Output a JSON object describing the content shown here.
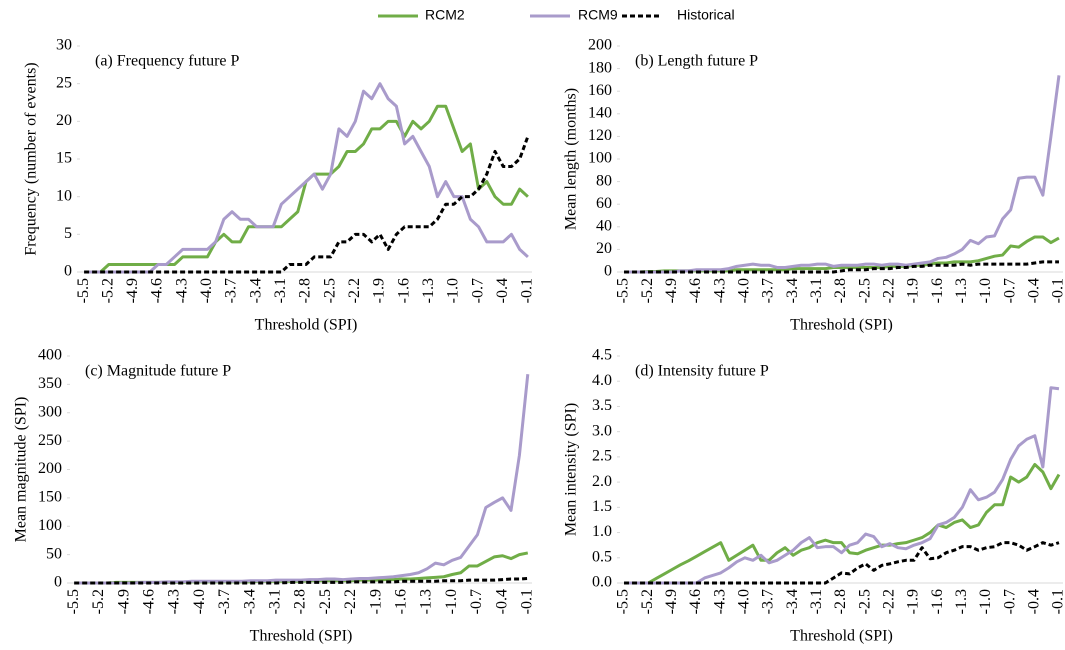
{
  "chart_data": [
    {
      "type": "line",
      "title": "(a) Frequency future P",
      "y_label": "Frequency (number of events)",
      "x_label": "Threshold (SPI)",
      "categories": [
        "-5.5",
        null,
        null,
        "-5.2",
        null,
        null,
        "-4.9",
        null,
        null,
        "-4.6",
        null,
        null,
        "-4.3",
        null,
        null,
        "-4.0",
        null,
        null,
        "-3.7",
        null,
        null,
        "-3.4",
        null,
        null,
        "-3.1",
        null,
        null,
        "-2.8",
        null,
        null,
        "-2.5",
        null,
        null,
        "-2.2",
        null,
        null,
        "-1.9",
        null,
        null,
        "-1.6",
        null,
        null,
        "-1.3",
        null,
        null,
        "-1.0",
        null,
        null,
        "-0.7",
        null,
        null,
        "-0.4",
        null,
        null,
        "-0.1"
      ],
      "ylim": [
        0,
        30
      ],
      "yticks": [
        0,
        5,
        10,
        15,
        20,
        25,
        30
      ],
      "series": [
        {
          "name": "RCM2",
          "color": "#70ad47",
          "dashed": false,
          "values": [
            0,
            0,
            0,
            1,
            1,
            1,
            1,
            1,
            1,
            1,
            1,
            1,
            2,
            2,
            2,
            2,
            4,
            5,
            4,
            4,
            6,
            6,
            6,
            6,
            6,
            7,
            8,
            12,
            13,
            13,
            13,
            14,
            16,
            16,
            17,
            19,
            19,
            20,
            20,
            18,
            20,
            19,
            20,
            22,
            22,
            19,
            16,
            17,
            11,
            12,
            10,
            9,
            9,
            11,
            10
          ]
        },
        {
          "name": "RCM9",
          "color": "#a99bcb",
          "dashed": false,
          "values": [
            0,
            0,
            0,
            0,
            0,
            0,
            0,
            0,
            0,
            1,
            1,
            2,
            3,
            3,
            3,
            3,
            4,
            7,
            8,
            7,
            7,
            6,
            6,
            6,
            9,
            10,
            11,
            12,
            13,
            11,
            13,
            19,
            18,
            20,
            24,
            23,
            25,
            23,
            22,
            17,
            18,
            16,
            14,
            10,
            12,
            10,
            10,
            7,
            6,
            4,
            4,
            4,
            5,
            3,
            2
          ]
        },
        {
          "name": "Historical",
          "color": "#000000",
          "dashed": true,
          "values": [
            0,
            0,
            0,
            0,
            0,
            0,
            0,
            0,
            0,
            0,
            0,
            0,
            0,
            0,
            0,
            0,
            0,
            0,
            0,
            0,
            0,
            0,
            0,
            0,
            0,
            1,
            1,
            1,
            2,
            2,
            2,
            4,
            4,
            5,
            5,
            4,
            5,
            3,
            5,
            6,
            6,
            6,
            6,
            7,
            9,
            9,
            10,
            10,
            11,
            13,
            16,
            14,
            14,
            15,
            18
          ]
        }
      ]
    },
    {
      "type": "line",
      "title": "(b) Length future P",
      "y_label": "Mean length (months)",
      "x_label": "Threshold (SPI)",
      "categories": [
        "-5.5",
        null,
        null,
        "-5.2",
        null,
        null,
        "-4.9",
        null,
        null,
        "-4.6",
        null,
        null,
        "-4.3",
        null,
        null,
        "-4.0",
        null,
        null,
        "-3.7",
        null,
        null,
        "-3.4",
        null,
        null,
        "-3.1",
        null,
        null,
        "-2.8",
        null,
        null,
        "-2.5",
        null,
        null,
        "-2.2",
        null,
        null,
        "-1.9",
        null,
        null,
        "-1.6",
        null,
        null,
        "-1.3",
        null,
        null,
        "-1.0",
        null,
        null,
        "-0.7",
        null,
        null,
        "-0.4",
        null,
        null,
        "-0.1"
      ],
      "ylim": [
        0,
        200
      ],
      "yticks": [
        0,
        20,
        40,
        60,
        80,
        100,
        120,
        140,
        160,
        180,
        200
      ],
      "series": [
        {
          "color": "#70ad47",
          "dashed": false,
          "values": [
            0,
            0,
            0,
            0.5,
            0.5,
            1,
            1,
            1,
            1,
            1,
            1,
            1,
            1,
            1,
            2,
            2,
            2,
            2,
            2,
            2,
            2,
            3,
            3,
            3,
            3,
            3,
            4,
            4,
            4,
            4,
            4,
            4,
            4,
            5,
            5,
            5,
            6,
            6,
            7,
            8,
            8,
            9,
            9,
            9,
            10,
            12,
            14,
            15,
            23,
            22,
            27,
            31,
            31,
            26,
            30
          ]
        },
        {
          "color": "#a99bcb",
          "dashed": false,
          "values": [
            0,
            0,
            0,
            0,
            0,
            0,
            0,
            1,
            1,
            2,
            2,
            2,
            2,
            3,
            5,
            6,
            7,
            6,
            6,
            4,
            4,
            5,
            6,
            6,
            7,
            7,
            5,
            6,
            6,
            6,
            7,
            7,
            6,
            7,
            7,
            6,
            7,
            8,
            9,
            12,
            13,
            16,
            20,
            28,
            25,
            31,
            32,
            47,
            55,
            83,
            84,
            84,
            68,
            120,
            174
          ]
        },
        {
          "color": "#000000",
          "dashed": true,
          "values": [
            0,
            0,
            0,
            0,
            0,
            0,
            0,
            0,
            0,
            0,
            0,
            0,
            0,
            0,
            0,
            0,
            0,
            0,
            0,
            0,
            0,
            0,
            0,
            0,
            0,
            0,
            0,
            1,
            2,
            2,
            2,
            3,
            3,
            3,
            4,
            4,
            5,
            5,
            6,
            6,
            6,
            6,
            7,
            6,
            7,
            7,
            7,
            7,
            7,
            7,
            7,
            8,
            9,
            9,
            9
          ]
        }
      ]
    },
    {
      "type": "line",
      "title": "(c) Magnitude future P",
      "y_label": "Mean magnitude (SPI)",
      "x_label": "Threshold (SPI)",
      "categories": [
        "-5.5",
        null,
        null,
        "-5.2",
        null,
        null,
        "-4.9",
        null,
        null,
        "-4.6",
        null,
        null,
        "-4.3",
        null,
        null,
        "-4.0",
        null,
        null,
        "-3.7",
        null,
        null,
        "-3.4",
        null,
        null,
        "-3.1",
        null,
        null,
        "-2.8",
        null,
        null,
        "-2.5",
        null,
        null,
        "-2.2",
        null,
        null,
        "-1.9",
        null,
        null,
        "-1.6",
        null,
        null,
        "-1.3",
        null,
        null,
        "-1.0",
        null,
        null,
        "-0.7",
        null,
        null,
        "-0.4",
        null,
        null,
        "-0.1"
      ],
      "ylim": [
        0,
        400
      ],
      "yticks": [
        0,
        50,
        100,
        150,
        200,
        250,
        300,
        350,
        400
      ],
      "series": [
        {
          "color": "#70ad47",
          "dashed": false,
          "values": [
            0,
            0,
            0,
            0,
            0,
            1,
            1,
            1,
            1,
            1,
            1,
            1,
            1,
            1,
            2,
            2,
            2,
            2,
            2,
            2,
            2,
            2,
            3,
            3,
            3,
            3,
            3,
            3,
            4,
            4,
            4,
            4,
            4,
            4,
            5,
            5,
            5,
            6,
            6,
            7,
            7,
            8,
            9,
            10,
            11,
            15,
            18,
            30,
            30,
            38,
            46,
            48,
            43,
            50,
            53
          ]
        },
        {
          "color": "#a99bcb",
          "dashed": false,
          "values": [
            0,
            0,
            0,
            0,
            0,
            0,
            0,
            0,
            1,
            1,
            1,
            2,
            2,
            2,
            3,
            3,
            3,
            3,
            3,
            3,
            3,
            4,
            4,
            4,
            5,
            5,
            5,
            5,
            6,
            6,
            7,
            7,
            6,
            7,
            8,
            8,
            9,
            10,
            11,
            13,
            15,
            18,
            25,
            35,
            32,
            40,
            45,
            65,
            85,
            133,
            142,
            150,
            128,
            225,
            368
          ]
        },
        {
          "color": "#000000",
          "dashed": true,
          "values": [
            0,
            0,
            0,
            0,
            0,
            0,
            0,
            0,
            0,
            0,
            0,
            0,
            0,
            0,
            0,
            0,
            0,
            0,
            0,
            0,
            0,
            0,
            0,
            0,
            0,
            0.5,
            1,
            1,
            1,
            1,
            1,
            1,
            1,
            2,
            2,
            2,
            2,
            2,
            2,
            3,
            3,
            3,
            3,
            3,
            4,
            4,
            4,
            5,
            5,
            5,
            5,
            6,
            7,
            7,
            8
          ]
        }
      ]
    },
    {
      "type": "line",
      "title": "(d) Intensity future P",
      "y_label": "Mean intensity (SPI)",
      "x_label": "Threshold (SPI)",
      "categories": [
        "-5.5",
        null,
        null,
        "-5.2",
        null,
        null,
        "-4.9",
        null,
        null,
        "-4.6",
        null,
        null,
        "-4.3",
        null,
        null,
        "-4.0",
        null,
        null,
        "-3.7",
        null,
        null,
        "-3.4",
        null,
        null,
        "-3.1",
        null,
        null,
        "-2.8",
        null,
        null,
        "-2.5",
        null,
        null,
        "-2.2",
        null,
        null,
        "-1.9",
        null,
        null,
        "-1.6",
        null,
        null,
        "-1.3",
        null,
        null,
        "-1.0",
        null,
        null,
        "-0.7",
        null,
        null,
        "-0.4",
        null,
        null,
        "-0.1"
      ],
      "ylim": [
        0,
        4.5
      ],
      "yticks": [
        {
          "value": 0,
          "label": "0.0"
        },
        0.5,
        {
          "value": 1,
          "label": "1.0"
        },
        1.5,
        {
          "value": 2,
          "label": "2.0"
        },
        2.5,
        {
          "value": 3,
          "label": "3.0"
        },
        3.5,
        {
          "value": 4,
          "label": "4.0"
        },
        4.5
      ],
      "series": [
        {
          "color": "#70ad47",
          "dashed": false,
          "values": [
            0,
            0,
            0,
            0,
            0.09,
            0.18,
            0.27,
            0.36,
            0.44,
            0.53,
            0.62,
            0.71,
            0.8,
            0.45,
            0.55,
            0.65,
            0.75,
            0.45,
            0.45,
            0.6,
            0.7,
            0.55,
            0.65,
            0.7,
            0.8,
            0.85,
            0.8,
            0.8,
            0.6,
            0.58,
            0.65,
            0.7,
            0.75,
            0.75,
            0.78,
            0.8,
            0.85,
            0.9,
            1.0,
            1.15,
            1.1,
            1.2,
            1.25,
            1.1,
            1.15,
            1.4,
            1.55,
            1.55,
            2.1,
            2.0,
            2.1,
            2.35,
            2.2,
            1.87,
            2.15
          ]
        },
        {
          "color": "#a99bcb",
          "dashed": false,
          "values": [
            0,
            0,
            0,
            0,
            0,
            0,
            0,
            0,
            0,
            0,
            0.1,
            0.15,
            0.2,
            0.3,
            0.42,
            0.5,
            0.45,
            0.55,
            0.4,
            0.45,
            0.55,
            0.65,
            0.8,
            0.9,
            0.7,
            0.72,
            0.72,
            0.6,
            0.75,
            0.8,
            0.97,
            0.92,
            0.72,
            0.78,
            0.7,
            0.68,
            0.75,
            0.8,
            0.88,
            1.15,
            1.2,
            1.3,
            1.5,
            1.85,
            1.65,
            1.7,
            1.8,
            2.05,
            2.45,
            2.72,
            2.85,
            2.92,
            2.3,
            3.87,
            3.85
          ]
        },
        {
          "color": "#000000",
          "dashed": true,
          "values": [
            0,
            0,
            0,
            0,
            0,
            0,
            0,
            0,
            0,
            0,
            0,
            0,
            0,
            0,
            0,
            0,
            0,
            0,
            0,
            0,
            0,
            0,
            0,
            0,
            0,
            0,
            0.1,
            0.2,
            0.18,
            0.3,
            0.38,
            0.25,
            0.35,
            0.38,
            0.42,
            0.45,
            0.45,
            0.7,
            0.48,
            0.5,
            0.6,
            0.65,
            0.72,
            0.72,
            0.65,
            0.7,
            0.72,
            0.8,
            0.8,
            0.75,
            0.65,
            0.72,
            0.8,
            0.75,
            0.8
          ]
        }
      ]
    }
  ]
}
